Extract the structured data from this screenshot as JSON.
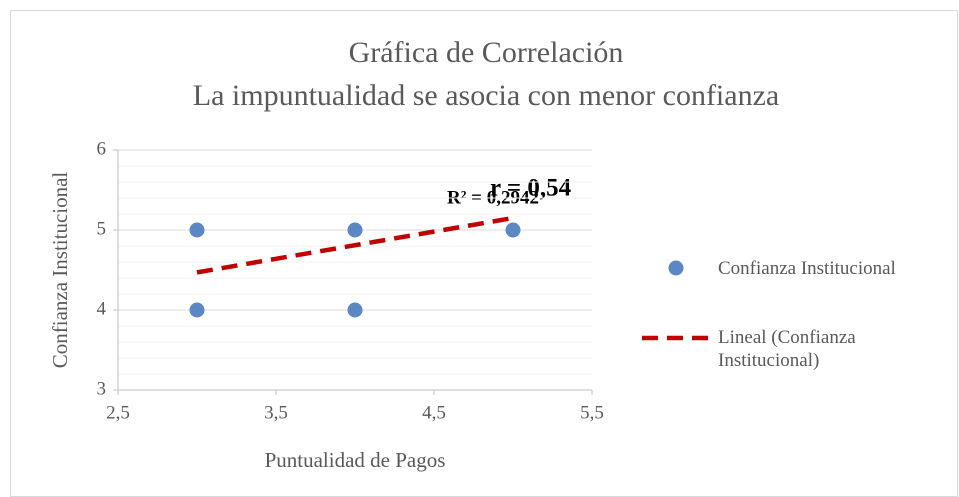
{
  "chart_data": {
    "type": "scatter",
    "title": "Gráfica de Correlación",
    "subtitle": "La impuntualidad se asocia con menor confianza",
    "x_label": "Puntualidad de Pagos",
    "y_label": "Confianza Institucional",
    "series": [
      {
        "name": "Confianza Institucional",
        "color": "#5b87c5",
        "x": [
          3,
          3,
          4,
          4,
          5
        ],
        "values": [
          5,
          4,
          5,
          4,
          5
        ]
      }
    ],
    "trendline": {
      "name": "Lineal (Confianza Institucional)",
      "color": "#c00000",
      "x": [
        3,
        5
      ],
      "values": [
        4.47,
        5.15
      ]
    },
    "annotations": [
      "R² = 0,2942",
      "r = 0,54"
    ],
    "xlim": [
      2.5,
      5.5
    ],
    "xticks": [
      {
        "value": 2.5,
        "label": "2,5"
      },
      {
        "value": 3.5,
        "label": "3,5"
      },
      {
        "value": 4.5,
        "label": "4,5"
      },
      {
        "value": 5.5,
        "label": "5,5"
      }
    ],
    "ylim": [
      3,
      6
    ],
    "yticks": [
      3,
      4,
      5,
      6
    ],
    "grid": true,
    "minor_grid": true,
    "legend": "right"
  }
}
